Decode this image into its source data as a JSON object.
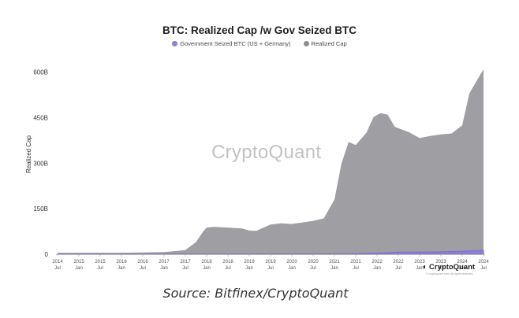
{
  "chart_data": {
    "type": "area",
    "title": "BTC: Realized Cap /w Gov Seized BTC",
    "xlabel": "",
    "ylabel": "Realized Cap",
    "ylim": [
      0,
      620
    ],
    "y_ticks": [
      {
        "value": 0,
        "label": "0"
      },
      {
        "value": 150,
        "label": "150B"
      },
      {
        "value": 300,
        "label": "300B"
      },
      {
        "value": 450,
        "label": "450B"
      },
      {
        "value": 600,
        "label": "600B"
      }
    ],
    "x_ticks": [
      {
        "year": "2014",
        "month": "Jul"
      },
      {
        "year": "2015",
        "month": "Jan"
      },
      {
        "year": "2015",
        "month": "Jul"
      },
      {
        "year": "2016",
        "month": "Jan"
      },
      {
        "year": "2016",
        "month": "Jul"
      },
      {
        "year": "2017",
        "month": "Jan"
      },
      {
        "year": "2017",
        "month": "Jul"
      },
      {
        "year": "2018",
        "month": "Jan"
      },
      {
        "year": "2018",
        "month": "Jul"
      },
      {
        "year": "2019",
        "month": "Jan"
      },
      {
        "year": "2019",
        "month": "Jul"
      },
      {
        "year": "2020",
        "month": "Jan"
      },
      {
        "year": "2020",
        "month": "Jul"
      },
      {
        "year": "2021",
        "month": "Jan"
      },
      {
        "year": "2021",
        "month": "Jul"
      },
      {
        "year": "2022",
        "month": "Jan"
      },
      {
        "year": "2022",
        "month": "Jul"
      },
      {
        "year": "2023",
        "month": "Jan"
      },
      {
        "year": "2023",
        "month": "Jul"
      },
      {
        "year": "2024",
        "month": "Jan"
      },
      {
        "year": "2024",
        "month": "Jul"
      }
    ],
    "grid": false,
    "legend_position": "top-center",
    "series": [
      {
        "name": "Realized Cap",
        "color": "#9e9ea3",
        "points": [
          [
            "2014-07",
            5
          ],
          [
            "2015-01",
            5
          ],
          [
            "2015-07",
            5
          ],
          [
            "2016-01",
            5
          ],
          [
            "2016-07",
            6
          ],
          [
            "2017-01",
            7
          ],
          [
            "2017-04",
            10
          ],
          [
            "2017-07",
            14
          ],
          [
            "2017-10",
            40
          ],
          [
            "2017-12",
            75
          ],
          [
            "2018-01",
            88
          ],
          [
            "2018-03",
            90
          ],
          [
            "2018-07",
            88
          ],
          [
            "2018-11",
            85
          ],
          [
            "2019-01",
            78
          ],
          [
            "2019-03",
            77
          ],
          [
            "2019-07",
            98
          ],
          [
            "2019-10",
            102
          ],
          [
            "2020-01",
            100
          ],
          [
            "2020-03",
            103
          ],
          [
            "2020-07",
            110
          ],
          [
            "2020-10",
            118
          ],
          [
            "2021-01",
            180
          ],
          [
            "2021-03",
            300
          ],
          [
            "2021-05",
            370
          ],
          [
            "2021-07",
            360
          ],
          [
            "2021-10",
            400
          ],
          [
            "2021-12",
            452
          ],
          [
            "2022-02",
            465
          ],
          [
            "2022-04",
            460
          ],
          [
            "2022-06",
            420
          ],
          [
            "2022-10",
            402
          ],
          [
            "2023-01",
            383
          ],
          [
            "2023-04",
            390
          ],
          [
            "2023-07",
            395
          ],
          [
            "2023-10",
            398
          ],
          [
            "2024-01",
            425
          ],
          [
            "2024-03",
            530
          ],
          [
            "2024-05",
            570
          ],
          [
            "2024-07",
            610
          ]
        ]
      },
      {
        "name": "Government Seized BTC (US + Germany)",
        "color": "#8b7fd6",
        "points": [
          [
            "2014-07",
            0.3
          ],
          [
            "2017-01",
            0.5
          ],
          [
            "2020-07",
            1
          ],
          [
            "2021-01",
            1.5
          ],
          [
            "2021-07",
            2
          ],
          [
            "2022-01",
            4
          ],
          [
            "2022-07",
            7
          ],
          [
            "2023-01",
            7
          ],
          [
            "2023-07",
            8
          ],
          [
            "2024-01",
            10
          ],
          [
            "2024-07",
            13
          ]
        ]
      }
    ]
  },
  "watermark": "CryptoQuant",
  "brand": {
    "name": "CryptoQuant",
    "subtext": "© cryptoquant.com. All rights reserved."
  },
  "source": "Source: Bitfinex/CryptoQuant"
}
